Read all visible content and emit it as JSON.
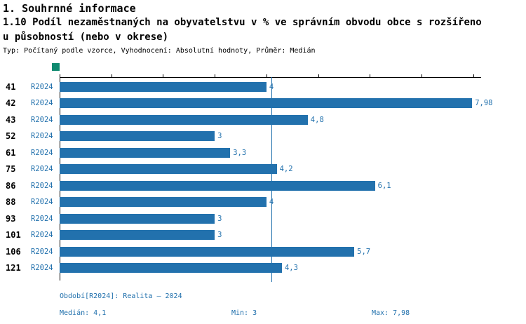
{
  "header": {
    "section_title": "1. Souhrnné informace",
    "chart_title_line1": "1.10 Podíl nezaměstnaných na obyvatelstvu v % ve správním obvodu obce s rozšířeno",
    "chart_title_line2": "u působností (nebo v okrese)",
    "meta": "Typ: Počítaný podle vzorce, Vyhodnocení: Absolutní hodnoty, Průměr: Medián"
  },
  "chart_data": {
    "type": "bar",
    "orientation": "horizontal",
    "title": "1.10 Podíl nezaměstnaných na obyvatelstvu v % ve správním obvodu obce s rozšířenou působností (nebo v okrese)",
    "categories": [
      "41",
      "42",
      "43",
      "52",
      "61",
      "75",
      "86",
      "88",
      "93",
      "101",
      "106",
      "121"
    ],
    "series": [
      {
        "name": "R2024",
        "values": [
          4,
          7.98,
          4.8,
          3,
          3.3,
          4.2,
          6.1,
          4,
          3,
          3,
          5.7,
          4.3
        ]
      }
    ],
    "value_labels": [
      "4",
      "7,98",
      "4,8",
      "3",
      "3,3",
      "4,2",
      "6,1",
      "4",
      "3",
      "3",
      "5,7",
      "4,3"
    ],
    "xlim": [
      0,
      8.14
    ],
    "median": 4.1,
    "min": 3,
    "max": 7.98,
    "grid": false,
    "legend_position": "top-left",
    "bar_color": "#2271ad",
    "median_line_color": "#2271ad",
    "legend_color": "#0f8a70"
  },
  "footer": {
    "period": "Období[R2024]: Realita – 2024",
    "median": "Medián: 4,1",
    "min": "Min: 3",
    "max": "Max: 7,98"
  }
}
